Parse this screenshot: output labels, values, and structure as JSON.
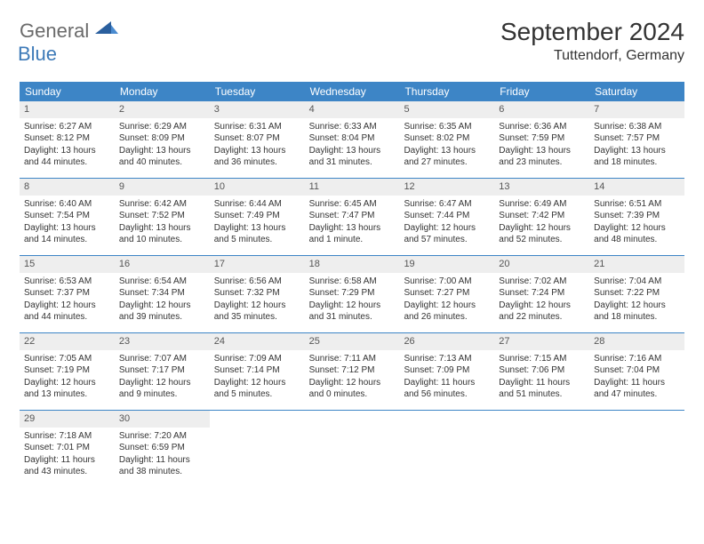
{
  "logo": {
    "text1": "General",
    "text2": "Blue"
  },
  "title": "September 2024",
  "location": "Tuttendorf, Germany",
  "colors": {
    "header_bg": "#3d85c6",
    "daynum_bg": "#eeeeee",
    "border": "#3d85c6",
    "logo_gray": "#6a6a6a",
    "logo_blue": "#3d7ab8"
  },
  "weekdays": [
    "Sunday",
    "Monday",
    "Tuesday",
    "Wednesday",
    "Thursday",
    "Friday",
    "Saturday"
  ],
  "weeks": [
    [
      {
        "n": "1",
        "sr": "Sunrise: 6:27 AM",
        "ss": "Sunset: 8:12 PM",
        "d1": "Daylight: 13 hours",
        "d2": "and 44 minutes."
      },
      {
        "n": "2",
        "sr": "Sunrise: 6:29 AM",
        "ss": "Sunset: 8:09 PM",
        "d1": "Daylight: 13 hours",
        "d2": "and 40 minutes."
      },
      {
        "n": "3",
        "sr": "Sunrise: 6:31 AM",
        "ss": "Sunset: 8:07 PM",
        "d1": "Daylight: 13 hours",
        "d2": "and 36 minutes."
      },
      {
        "n": "4",
        "sr": "Sunrise: 6:33 AM",
        "ss": "Sunset: 8:04 PM",
        "d1": "Daylight: 13 hours",
        "d2": "and 31 minutes."
      },
      {
        "n": "5",
        "sr": "Sunrise: 6:35 AM",
        "ss": "Sunset: 8:02 PM",
        "d1": "Daylight: 13 hours",
        "d2": "and 27 minutes."
      },
      {
        "n": "6",
        "sr": "Sunrise: 6:36 AM",
        "ss": "Sunset: 7:59 PM",
        "d1": "Daylight: 13 hours",
        "d2": "and 23 minutes."
      },
      {
        "n": "7",
        "sr": "Sunrise: 6:38 AM",
        "ss": "Sunset: 7:57 PM",
        "d1": "Daylight: 13 hours",
        "d2": "and 18 minutes."
      }
    ],
    [
      {
        "n": "8",
        "sr": "Sunrise: 6:40 AM",
        "ss": "Sunset: 7:54 PM",
        "d1": "Daylight: 13 hours",
        "d2": "and 14 minutes."
      },
      {
        "n": "9",
        "sr": "Sunrise: 6:42 AM",
        "ss": "Sunset: 7:52 PM",
        "d1": "Daylight: 13 hours",
        "d2": "and 10 minutes."
      },
      {
        "n": "10",
        "sr": "Sunrise: 6:44 AM",
        "ss": "Sunset: 7:49 PM",
        "d1": "Daylight: 13 hours",
        "d2": "and 5 minutes."
      },
      {
        "n": "11",
        "sr": "Sunrise: 6:45 AM",
        "ss": "Sunset: 7:47 PM",
        "d1": "Daylight: 13 hours",
        "d2": "and 1 minute."
      },
      {
        "n": "12",
        "sr": "Sunrise: 6:47 AM",
        "ss": "Sunset: 7:44 PM",
        "d1": "Daylight: 12 hours",
        "d2": "and 57 minutes."
      },
      {
        "n": "13",
        "sr": "Sunrise: 6:49 AM",
        "ss": "Sunset: 7:42 PM",
        "d1": "Daylight: 12 hours",
        "d2": "and 52 minutes."
      },
      {
        "n": "14",
        "sr": "Sunrise: 6:51 AM",
        "ss": "Sunset: 7:39 PM",
        "d1": "Daylight: 12 hours",
        "d2": "and 48 minutes."
      }
    ],
    [
      {
        "n": "15",
        "sr": "Sunrise: 6:53 AM",
        "ss": "Sunset: 7:37 PM",
        "d1": "Daylight: 12 hours",
        "d2": "and 44 minutes."
      },
      {
        "n": "16",
        "sr": "Sunrise: 6:54 AM",
        "ss": "Sunset: 7:34 PM",
        "d1": "Daylight: 12 hours",
        "d2": "and 39 minutes."
      },
      {
        "n": "17",
        "sr": "Sunrise: 6:56 AM",
        "ss": "Sunset: 7:32 PM",
        "d1": "Daylight: 12 hours",
        "d2": "and 35 minutes."
      },
      {
        "n": "18",
        "sr": "Sunrise: 6:58 AM",
        "ss": "Sunset: 7:29 PM",
        "d1": "Daylight: 12 hours",
        "d2": "and 31 minutes."
      },
      {
        "n": "19",
        "sr": "Sunrise: 7:00 AM",
        "ss": "Sunset: 7:27 PM",
        "d1": "Daylight: 12 hours",
        "d2": "and 26 minutes."
      },
      {
        "n": "20",
        "sr": "Sunrise: 7:02 AM",
        "ss": "Sunset: 7:24 PM",
        "d1": "Daylight: 12 hours",
        "d2": "and 22 minutes."
      },
      {
        "n": "21",
        "sr": "Sunrise: 7:04 AM",
        "ss": "Sunset: 7:22 PM",
        "d1": "Daylight: 12 hours",
        "d2": "and 18 minutes."
      }
    ],
    [
      {
        "n": "22",
        "sr": "Sunrise: 7:05 AM",
        "ss": "Sunset: 7:19 PM",
        "d1": "Daylight: 12 hours",
        "d2": "and 13 minutes."
      },
      {
        "n": "23",
        "sr": "Sunrise: 7:07 AM",
        "ss": "Sunset: 7:17 PM",
        "d1": "Daylight: 12 hours",
        "d2": "and 9 minutes."
      },
      {
        "n": "24",
        "sr": "Sunrise: 7:09 AM",
        "ss": "Sunset: 7:14 PM",
        "d1": "Daylight: 12 hours",
        "d2": "and 5 minutes."
      },
      {
        "n": "25",
        "sr": "Sunrise: 7:11 AM",
        "ss": "Sunset: 7:12 PM",
        "d1": "Daylight: 12 hours",
        "d2": "and 0 minutes."
      },
      {
        "n": "26",
        "sr": "Sunrise: 7:13 AM",
        "ss": "Sunset: 7:09 PM",
        "d1": "Daylight: 11 hours",
        "d2": "and 56 minutes."
      },
      {
        "n": "27",
        "sr": "Sunrise: 7:15 AM",
        "ss": "Sunset: 7:06 PM",
        "d1": "Daylight: 11 hours",
        "d2": "and 51 minutes."
      },
      {
        "n": "28",
        "sr": "Sunrise: 7:16 AM",
        "ss": "Sunset: 7:04 PM",
        "d1": "Daylight: 11 hours",
        "d2": "and 47 minutes."
      }
    ],
    [
      {
        "n": "29",
        "sr": "Sunrise: 7:18 AM",
        "ss": "Sunset: 7:01 PM",
        "d1": "Daylight: 11 hours",
        "d2": "and 43 minutes."
      },
      {
        "n": "30",
        "sr": "Sunrise: 7:20 AM",
        "ss": "Sunset: 6:59 PM",
        "d1": "Daylight: 11 hours",
        "d2": "and 38 minutes."
      },
      null,
      null,
      null,
      null,
      null
    ]
  ]
}
